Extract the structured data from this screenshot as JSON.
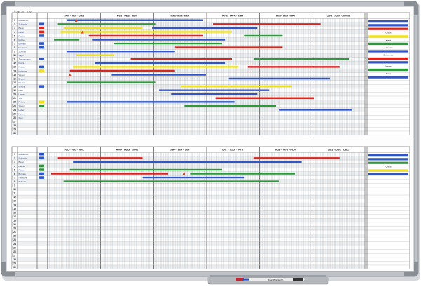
{
  "board": {
    "header_caption": "© Jahr 20__ 0.00",
    "marker_label": "Board-Marker XL",
    "colors": {
      "frame": "#bfc3c8",
      "frame_shadow": "#8e9399",
      "corner": "#8a8f96",
      "grid": "#9aa0a6",
      "surface": "#fdfdfd",
      "red": "#d8261e",
      "blue": "#2f56c4",
      "green": "#2c9a3a",
      "yellow": "#f2e21c"
    },
    "row_count_top": 30,
    "row_count_bottom": 30,
    "days_per_month": 31
  },
  "top_half": {
    "months": [
      "JAN · JAN · JAN",
      "FEB · FEB · FEV",
      "MAR·MAR·MAR",
      "APR · APR · AVR",
      "MAI · MAY · MAI",
      "JUN · JUIN · JUNIN"
    ],
    "rows": [
      {
        "num": "1",
        "name": "Musterfrau"
      },
      {
        "num": "2",
        "name": "Schneider"
      },
      {
        "num": "3",
        "name": "Bauer"
      },
      {
        "num": "4",
        "name": "Bauer"
      },
      {
        "num": "5",
        "name": "Fischer"
      },
      {
        "num": "6",
        "name": "Richter"
      },
      {
        "num": "7",
        "name": "Bertram"
      },
      {
        "num": "8",
        "name": "Neumann"
      },
      {
        "num": "9",
        "name": "Schmidt"
      },
      {
        "num": "10",
        "name": "Jäger"
      },
      {
        "num": "11",
        "name": "Zimmermann"
      },
      {
        "num": "12",
        "name": "Fuchs"
      },
      {
        "num": "13",
        "name": "Krause"
      },
      {
        "num": "14",
        "name": "Hoffmann"
      },
      {
        "num": "15",
        "name": "Weber"
      },
      {
        "num": "16",
        "name": "Becker"
      },
      {
        "num": "17",
        "name": "Wagner"
      },
      {
        "num": "18",
        "name": "Schulz"
      },
      {
        "num": "19",
        "name": "Klein"
      },
      {
        "num": "20",
        "name": "Lange"
      },
      {
        "num": "21",
        "name": "Wolf"
      },
      {
        "num": "22",
        "name": "Peters"
      },
      {
        "num": "23",
        "name": "Walter"
      },
      {
        "num": "24",
        "name": "Huber"
      },
      {
        "num": "25",
        "name": "Kaiser"
      },
      {
        "num": "26",
        "name": "Stein"
      },
      {
        "num": "27",
        "name": ""
      },
      {
        "num": "28",
        "name": ""
      },
      {
        "num": "29",
        "name": ""
      },
      {
        "num": "30",
        "name": ""
      }
    ],
    "bars": [
      {
        "row": 0,
        "start": 0.06,
        "end": 0.49,
        "color": "blue"
      },
      {
        "row": 1,
        "start": 0.03,
        "end": 0.34,
        "color": "green"
      },
      {
        "row": 1,
        "start": 0.52,
        "end": 0.86,
        "color": "red"
      },
      {
        "row": 2,
        "start": 0.05,
        "end": 0.3,
        "color": "yellow"
      },
      {
        "row": 2,
        "start": 0.33,
        "end": 0.66,
        "color": "blue"
      },
      {
        "row": 3,
        "start": 0.04,
        "end": 0.58,
        "color": "yellow"
      },
      {
        "row": 4,
        "start": 0.13,
        "end": 0.49,
        "color": "red"
      },
      {
        "row": 4,
        "start": 0.62,
        "end": 0.74,
        "color": "green"
      },
      {
        "row": 5,
        "start": 0.02,
        "end": 0.1,
        "color": "green"
      },
      {
        "row": 5,
        "start": 0.14,
        "end": 0.56,
        "color": "blue"
      },
      {
        "row": 6,
        "start": 0.21,
        "end": 0.55,
        "color": "green"
      },
      {
        "row": 7,
        "start": 0.4,
        "end": 0.74,
        "color": "red"
      },
      {
        "row": 8,
        "start": 0.06,
        "end": 0.4,
        "color": "blue"
      },
      {
        "row": 9,
        "start": 0.09,
        "end": 0.21,
        "color": "yellow"
      },
      {
        "row": 10,
        "start": 0.26,
        "end": 0.58,
        "color": "red"
      },
      {
        "row": 10,
        "start": 0.65,
        "end": 0.95,
        "color": "green"
      },
      {
        "row": 11,
        "start": 0.15,
        "end": 0.56,
        "color": "blue"
      },
      {
        "row": 12,
        "start": 0.08,
        "end": 0.6,
        "color": "yellow"
      },
      {
        "row": 12,
        "start": 0.63,
        "end": 0.92,
        "color": "red"
      },
      {
        "row": 13,
        "start": 0.07,
        "end": 0.4,
        "color": "red"
      },
      {
        "row": 14,
        "start": 0.2,
        "end": 0.5,
        "color": "blue"
      },
      {
        "row": 15,
        "start": 0.57,
        "end": 0.89,
        "color": "blue"
      },
      {
        "row": 16,
        "start": 0.06,
        "end": 0.34,
        "color": "green"
      },
      {
        "row": 17,
        "start": 0.42,
        "end": 0.77,
        "color": "yellow"
      },
      {
        "row": 18,
        "start": 0.35,
        "end": 0.7,
        "color": "blue"
      },
      {
        "row": 19,
        "start": 0.39,
        "end": 0.66,
        "color": "blue"
      },
      {
        "row": 20,
        "start": 0.53,
        "end": 0.84,
        "color": "red"
      },
      {
        "row": 21,
        "start": 0.06,
        "end": 0.59,
        "color": "blue"
      },
      {
        "row": 22,
        "start": 0.43,
        "end": 0.72,
        "color": "green"
      },
      {
        "row": 23,
        "start": 0.73,
        "end": 0.96,
        "color": "blue"
      }
    ],
    "flags": [
      {
        "row": 0,
        "pos": 0.09
      },
      {
        "row": 3,
        "pos": 0.11
      },
      {
        "row": 14,
        "pos": 0.07
      }
    ],
    "tags": [
      {
        "row": 1,
        "color": "blue"
      },
      {
        "row": 2,
        "color": "red"
      },
      {
        "row": 3,
        "color": "red"
      },
      {
        "row": 4,
        "color": "blue"
      },
      {
        "row": 6,
        "color": "blue"
      },
      {
        "row": 7,
        "color": "blue"
      },
      {
        "row": 10,
        "color": "blue"
      },
      {
        "row": 12,
        "color": "blue"
      },
      {
        "row": 13,
        "color": "yellow"
      },
      {
        "row": 17,
        "color": "blue"
      },
      {
        "row": 21,
        "color": "yellow"
      },
      {
        "row": 22,
        "color": "green"
      }
    ],
    "legend": [
      {
        "label": "",
        "color": "blue"
      },
      {
        "label": "",
        "color": "blue"
      },
      {
        "label": "",
        "color": "red"
      },
      {
        "label": "Urlaub",
        "color": ""
      },
      {
        "label": "",
        "color": "yellow"
      },
      {
        "label": "Krank",
        "color": ""
      },
      {
        "label": "",
        "color": "green"
      },
      {
        "label": "Schulung",
        "color": ""
      },
      {
        "label": "",
        "color": "blue"
      },
      {
        "label": "Dienstreise",
        "color": ""
      },
      {
        "label": "",
        "color": "red"
      },
      {
        "label": "",
        "color": "blue"
      },
      {
        "label": "Messe",
        "color": ""
      },
      {
        "label": "",
        "color": "green"
      },
      {
        "label": "Kurse",
        "color": ""
      },
      {
        "label": "",
        "color": "blue"
      }
    ]
  },
  "bottom_half": {
    "months": [
      "JUL · JUL · JUIL",
      "AUG · AUG · AOU",
      "SEP · SEP · SEP",
      "OKT · OCT · OCT",
      "NOV · NOV · NOV",
      "DEZ · DEC · DEC"
    ],
    "rows": [
      {
        "num": "1",
        "name": "Musterfrau"
      },
      {
        "num": "2",
        "name": "Schneider"
      },
      {
        "num": "3",
        "name": "Bauer"
      },
      {
        "num": "4",
        "name": "Fischer"
      },
      {
        "num": "5",
        "name": "Richter"
      },
      {
        "num": "6",
        "name": "Bertram"
      },
      {
        "num": "7",
        "name": "Neumann"
      },
      {
        "num": "8",
        "name": "Schmidt"
      },
      {
        "num": "9",
        "name": ""
      },
      {
        "num": "10",
        "name": ""
      },
      {
        "num": "11",
        "name": ""
      },
      {
        "num": "12",
        "name": ""
      },
      {
        "num": "13",
        "name": ""
      },
      {
        "num": "14",
        "name": ""
      },
      {
        "num": "15",
        "name": ""
      },
      {
        "num": "16",
        "name": ""
      },
      {
        "num": "17",
        "name": ""
      },
      {
        "num": "18",
        "name": ""
      },
      {
        "num": "19",
        "name": ""
      },
      {
        "num": "20",
        "name": ""
      },
      {
        "num": "21",
        "name": ""
      },
      {
        "num": "22",
        "name": ""
      },
      {
        "num": "23",
        "name": ""
      },
      {
        "num": "24",
        "name": ""
      },
      {
        "num": "25",
        "name": ""
      },
      {
        "num": "26",
        "name": ""
      },
      {
        "num": "27",
        "name": ""
      },
      {
        "num": "28",
        "name": ""
      },
      {
        "num": "29",
        "name": ""
      },
      {
        "num": "30",
        "name": ""
      }
    ],
    "bars": [
      {
        "row": 1,
        "start": 0.03,
        "end": 0.3,
        "color": "red"
      },
      {
        "row": 1,
        "start": 0.65,
        "end": 0.92,
        "color": "red"
      },
      {
        "row": 2,
        "start": 0.08,
        "end": 0.8,
        "color": "blue"
      },
      {
        "row": 4,
        "start": 0.07,
        "end": 0.55,
        "color": "green"
      },
      {
        "row": 5,
        "start": 0.01,
        "end": 0.38,
        "color": "red"
      },
      {
        "row": 5,
        "start": 0.45,
        "end": 0.78,
        "color": "green"
      },
      {
        "row": 6,
        "start": 0.3,
        "end": 0.62,
        "color": "blue"
      },
      {
        "row": 7,
        "start": 0.05,
        "end": 0.73,
        "color": "green"
      }
    ],
    "flags": [
      {
        "row": 5,
        "pos": 0.43
      }
    ],
    "tags": [
      {
        "row": 0,
        "color": "blue"
      },
      {
        "row": 1,
        "color": "blue"
      },
      {
        "row": 3,
        "color": "green"
      },
      {
        "row": 4,
        "color": "green"
      },
      {
        "row": 5,
        "color": "blue"
      },
      {
        "row": 6,
        "color": "blue"
      }
    ],
    "legend": [
      {
        "label": "",
        "color": "blue"
      },
      {
        "label": "",
        "color": "blue"
      },
      {
        "label": "",
        "color": "green"
      },
      {
        "label": "Urlaub",
        "color": ""
      },
      {
        "label": "",
        "color": "yellow"
      },
      {
        "label": "",
        "color": "blue"
      }
    ]
  }
}
